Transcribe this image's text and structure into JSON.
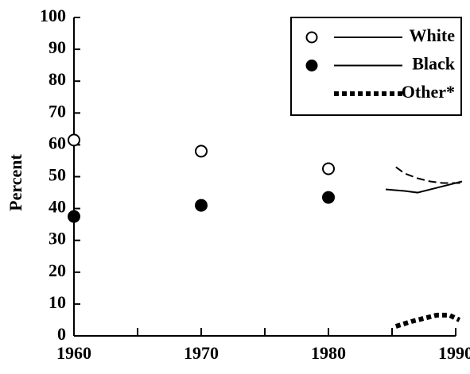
{
  "chart_data": {
    "type": "scatter-line",
    "y_label": "Percent",
    "xlim": [
      1960,
      1990
    ],
    "xticks": [
      1960,
      1970,
      1980,
      1990
    ],
    "xminorticks": [
      1965,
      1975,
      1985
    ],
    "ylim": [
      0,
      100
    ],
    "yticks": [
      0,
      10,
      20,
      30,
      40,
      50,
      60,
      70,
      80,
      90,
      100
    ],
    "legend": "upper right",
    "series": [
      {
        "name": "White",
        "color": "#000",
        "marker": "open",
        "marker_x": [
          1960,
          1970,
          1980
        ],
        "marker_values": [
          61.5,
          58,
          52.5
        ],
        "line_style": "dashed",
        "line_x": [
          1985.3,
          1986,
          1987,
          1988,
          1989,
          1990.5
        ],
        "line_values": [
          53,
          51,
          49.5,
          48.5,
          48,
          48
        ]
      },
      {
        "name": "Black",
        "color": "#000",
        "marker": "filled",
        "marker_x": [
          1960,
          1970,
          1980
        ],
        "marker_values": [
          37.5,
          41,
          43.5
        ],
        "line_style": "solid",
        "line_x": [
          1984.5,
          1986,
          1987,
          1988.5,
          1990.5
        ],
        "line_values": [
          46,
          45.5,
          45,
          46.5,
          48.5
        ]
      },
      {
        "name": "Other*",
        "color": "#000",
        "marker": "none",
        "marker_x": [],
        "marker_values": [],
        "line_style": "dotted",
        "line_x": [
          1985.3,
          1986.5,
          1987.5,
          1988.5,
          1989.5,
          1990.3
        ],
        "line_values": [
          3,
          4.5,
          5.5,
          6.5,
          6.5,
          5
        ]
      }
    ]
  }
}
